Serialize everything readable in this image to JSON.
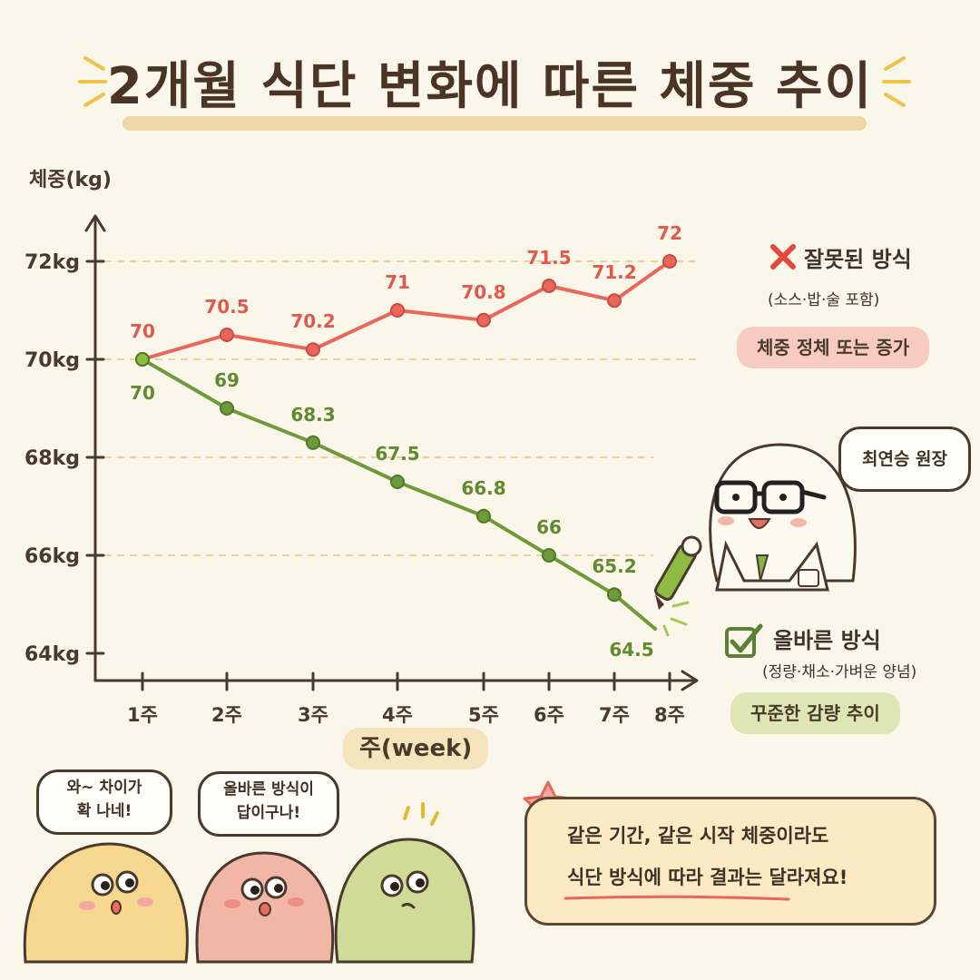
{
  "title": "2개월 식단 변화에 따른 체중 추이",
  "axis": {
    "ylabel": "체중(kg)",
    "xlabel": "주(week)",
    "yticks": [
      "64kg",
      "66kg",
      "68kg",
      "70kg",
      "72kg"
    ],
    "xticks": [
      "1주",
      "2주",
      "3주",
      "4주",
      "5주",
      "6주",
      "7주",
      "8주"
    ]
  },
  "chart_data": {
    "type": "line",
    "title": "2개월 식단 변화에 따른 체중 추이",
    "xlabel": "주(week)",
    "ylabel": "체중(kg)",
    "categories": [
      "1주",
      "2주",
      "3주",
      "4주",
      "5주",
      "6주",
      "7주",
      "8주"
    ],
    "ylim": [
      64,
      72
    ],
    "grid": "dashed horizontal",
    "series": [
      {
        "name": "잘못된 방식",
        "color": "#e8675a",
        "values": [
          70,
          70.5,
          70.2,
          71,
          70.8,
          71.5,
          71.2,
          72
        ],
        "labels": [
          "70",
          "70.5",
          "70.2",
          "71",
          "70.8",
          "71.5",
          "71.2",
          "72"
        ]
      },
      {
        "name": "올바른 방식",
        "color": "#6f9a3c",
        "values": [
          70,
          69,
          68.3,
          67.5,
          66.8,
          66,
          65.2,
          64.5
        ],
        "labels": [
          "70",
          "69",
          "68.3",
          "67.5",
          "66.8",
          "66",
          "65.2",
          "64.5"
        ]
      }
    ]
  },
  "legend": {
    "wrong": {
      "title": "잘못된 방식",
      "sub": "(소스·밥·술 포함)",
      "tag": "체중 정체 또는 증가",
      "icon": "x-mark-icon"
    },
    "right": {
      "title": "올바른 방식",
      "sub": "(정량·채소·가벼운 양념)",
      "tag": "꾸준한 감량 추이",
      "icon": "checkbox-check-icon"
    }
  },
  "doctor": {
    "name": "최연승 원장"
  },
  "bubbles": {
    "b1": [
      "와~ 차이가",
      "확 나네!"
    ],
    "b2": [
      "올바른 방식이",
      "답이구나!"
    ]
  },
  "note": {
    "line1": "같은 기간, 같은 시작 체중이라도",
    "line2": "식단 방식에 따라 결과는 달라져요!"
  },
  "colors": {
    "background": "#fbf6ea",
    "red": "#e8675a",
    "green": "#6f9a3c",
    "ink": "#4a3a2c"
  }
}
